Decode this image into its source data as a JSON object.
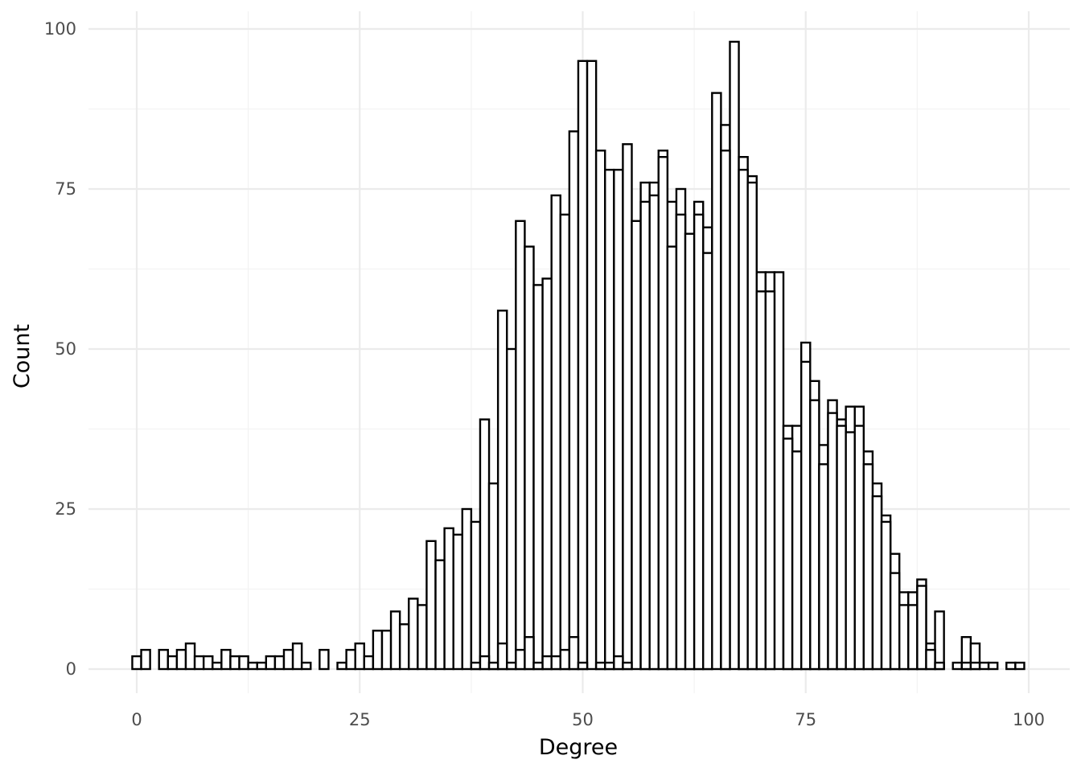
{
  "chart_data": {
    "type": "bar",
    "title": "",
    "xlabel": "Degree",
    "ylabel": "Count",
    "xlim": [
      -5,
      103
    ],
    "ylim": [
      -4,
      103
    ],
    "x_ticks": [
      0,
      25,
      50,
      75,
      100
    ],
    "y_ticks": [
      0,
      25,
      50,
      75,
      100
    ],
    "grid": true,
    "bin_width": 1,
    "colors": {
      "fill": "#ffffff",
      "outline": "#000000",
      "grid": "#ebebeb"
    },
    "series": [
      {
        "x": [
          0,
          1,
          3,
          4,
          5,
          6,
          7,
          8,
          9,
          10,
          11,
          12,
          13,
          14,
          15,
          16,
          17,
          18,
          19,
          21,
          23,
          24,
          25,
          26,
          27,
          28,
          29,
          30,
          31,
          32,
          33,
          34,
          35,
          36,
          37,
          38,
          39,
          40,
          41,
          42,
          43,
          44,
          45,
          46,
          47,
          48,
          49,
          50,
          51,
          52,
          53,
          54,
          55,
          56,
          57,
          58,
          59,
          60,
          61,
          62,
          63,
          64,
          65,
          66,
          67,
          68,
          69,
          70,
          71,
          72,
          73,
          74,
          75,
          76,
          77,
          78,
          79,
          80,
          81,
          82,
          83,
          84,
          85,
          86,
          87,
          88,
          89,
          90,
          92,
          93,
          94,
          95,
          96,
          98,
          99
        ],
        "values": [
          2,
          3,
          3,
          2,
          3,
          4,
          2,
          2,
          1,
          3,
          2,
          2,
          1,
          1,
          2,
          2,
          3,
          4,
          1,
          3,
          1,
          3,
          4,
          2,
          6,
          6,
          9,
          7,
          11,
          10,
          20,
          17,
          22,
          21,
          25,
          23,
          39,
          29,
          56,
          50,
          70,
          66,
          60,
          61,
          74,
          71,
          84,
          95,
          95,
          81,
          78,
          78,
          82,
          70,
          76,
          76,
          81,
          73,
          75,
          68,
          73,
          69,
          90,
          85,
          98,
          80,
          77,
          62,
          62,
          62,
          38,
          38,
          51,
          45,
          35,
          42,
          39,
          41,
          41,
          34,
          29,
          24,
          18,
          12,
          12,
          14,
          4,
          9,
          1,
          5,
          4,
          1,
          1,
          1,
          1
        ]
      },
      {
        "x": [
          38,
          39,
          40,
          41,
          42,
          43,
          44,
          45,
          46,
          47,
          48,
          49,
          50,
          51,
          52,
          53,
          54,
          55,
          56,
          57,
          58,
          59,
          60,
          61,
          62,
          63,
          64,
          65,
          66,
          67,
          68,
          69,
          70,
          71,
          72,
          73,
          74,
          75,
          76,
          77,
          78,
          79,
          80,
          81,
          82,
          83,
          84,
          85,
          86,
          87,
          88,
          89,
          90,
          93,
          94
        ],
        "values": [
          1,
          2,
          1,
          4,
          1,
          3,
          5,
          1,
          2,
          2,
          3,
          5,
          1,
          0,
          1,
          1,
          2,
          1,
          0,
          73,
          74,
          80,
          66,
          71,
          68,
          71,
          65,
          0,
          81,
          0,
          78,
          76,
          59,
          59,
          0,
          36,
          34,
          48,
          42,
          32,
          40,
          38,
          37,
          38,
          32,
          27,
          23,
          15,
          10,
          10,
          13,
          3,
          1,
          1,
          1
        ]
      }
    ]
  }
}
